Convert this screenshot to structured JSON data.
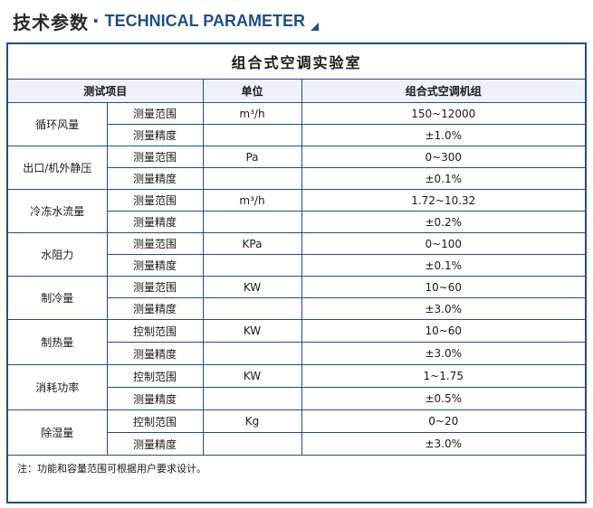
{
  "heading": {
    "cn": "技术参数",
    "dot": "·",
    "en": "TECHNICAL PARAMETER"
  },
  "table": {
    "title": "组合式空调实验室",
    "headers": {
      "item": "测试项目",
      "unit": "单位",
      "value": "组合式空调机组"
    },
    "groups": [
      {
        "name": "循环风量",
        "rows": [
          {
            "sub": "测量范围",
            "unit": "m³/h",
            "value": "150~12000"
          },
          {
            "sub": "测量精度",
            "unit": "",
            "value": "±1.0%"
          }
        ]
      },
      {
        "name": "出口/机外静压",
        "rows": [
          {
            "sub": "测量范围",
            "unit": "Pa",
            "value": "0~300"
          },
          {
            "sub": "测量精度",
            "unit": "",
            "value": "±0.1%"
          }
        ]
      },
      {
        "name": "冷冻水流量",
        "rows": [
          {
            "sub": "测量范围",
            "unit": "m³/h",
            "value": "1.72~10.32"
          },
          {
            "sub": "测量精度",
            "unit": "",
            "value": "±0.2%"
          }
        ]
      },
      {
        "name": "水阻力",
        "rows": [
          {
            "sub": "测量范围",
            "unit": "KPa",
            "value": "0~100"
          },
          {
            "sub": "测量精度",
            "unit": "",
            "value": "±0.1%"
          }
        ]
      },
      {
        "name": "制冷量",
        "rows": [
          {
            "sub": "测量范围",
            "unit": "KW",
            "value": "10~60"
          },
          {
            "sub": "测量精度",
            "unit": "",
            "value": "±3.0%"
          }
        ]
      },
      {
        "name": "制热量",
        "rows": [
          {
            "sub": "控制范围",
            "unit": "KW",
            "value": "10~60"
          },
          {
            "sub": "测量精度",
            "unit": "",
            "value": "±3.0%"
          }
        ]
      },
      {
        "name": "消耗功率",
        "rows": [
          {
            "sub": "控制范围",
            "unit": "KW",
            "value": "1~1.75"
          },
          {
            "sub": "测量精度",
            "unit": "",
            "value": "±0.5%"
          }
        ]
      },
      {
        "name": "除湿量",
        "rows": [
          {
            "sub": "控制范围",
            "unit": "Kg",
            "value": "0~20"
          },
          {
            "sub": "测量精度",
            "unit": "",
            "value": "±3.0%"
          }
        ]
      }
    ],
    "note": "注：功能和容量范围可根据用户要求设计。"
  },
  "colors": {
    "border": "#1e4c8a",
    "accent": "#1f4e8c"
  }
}
